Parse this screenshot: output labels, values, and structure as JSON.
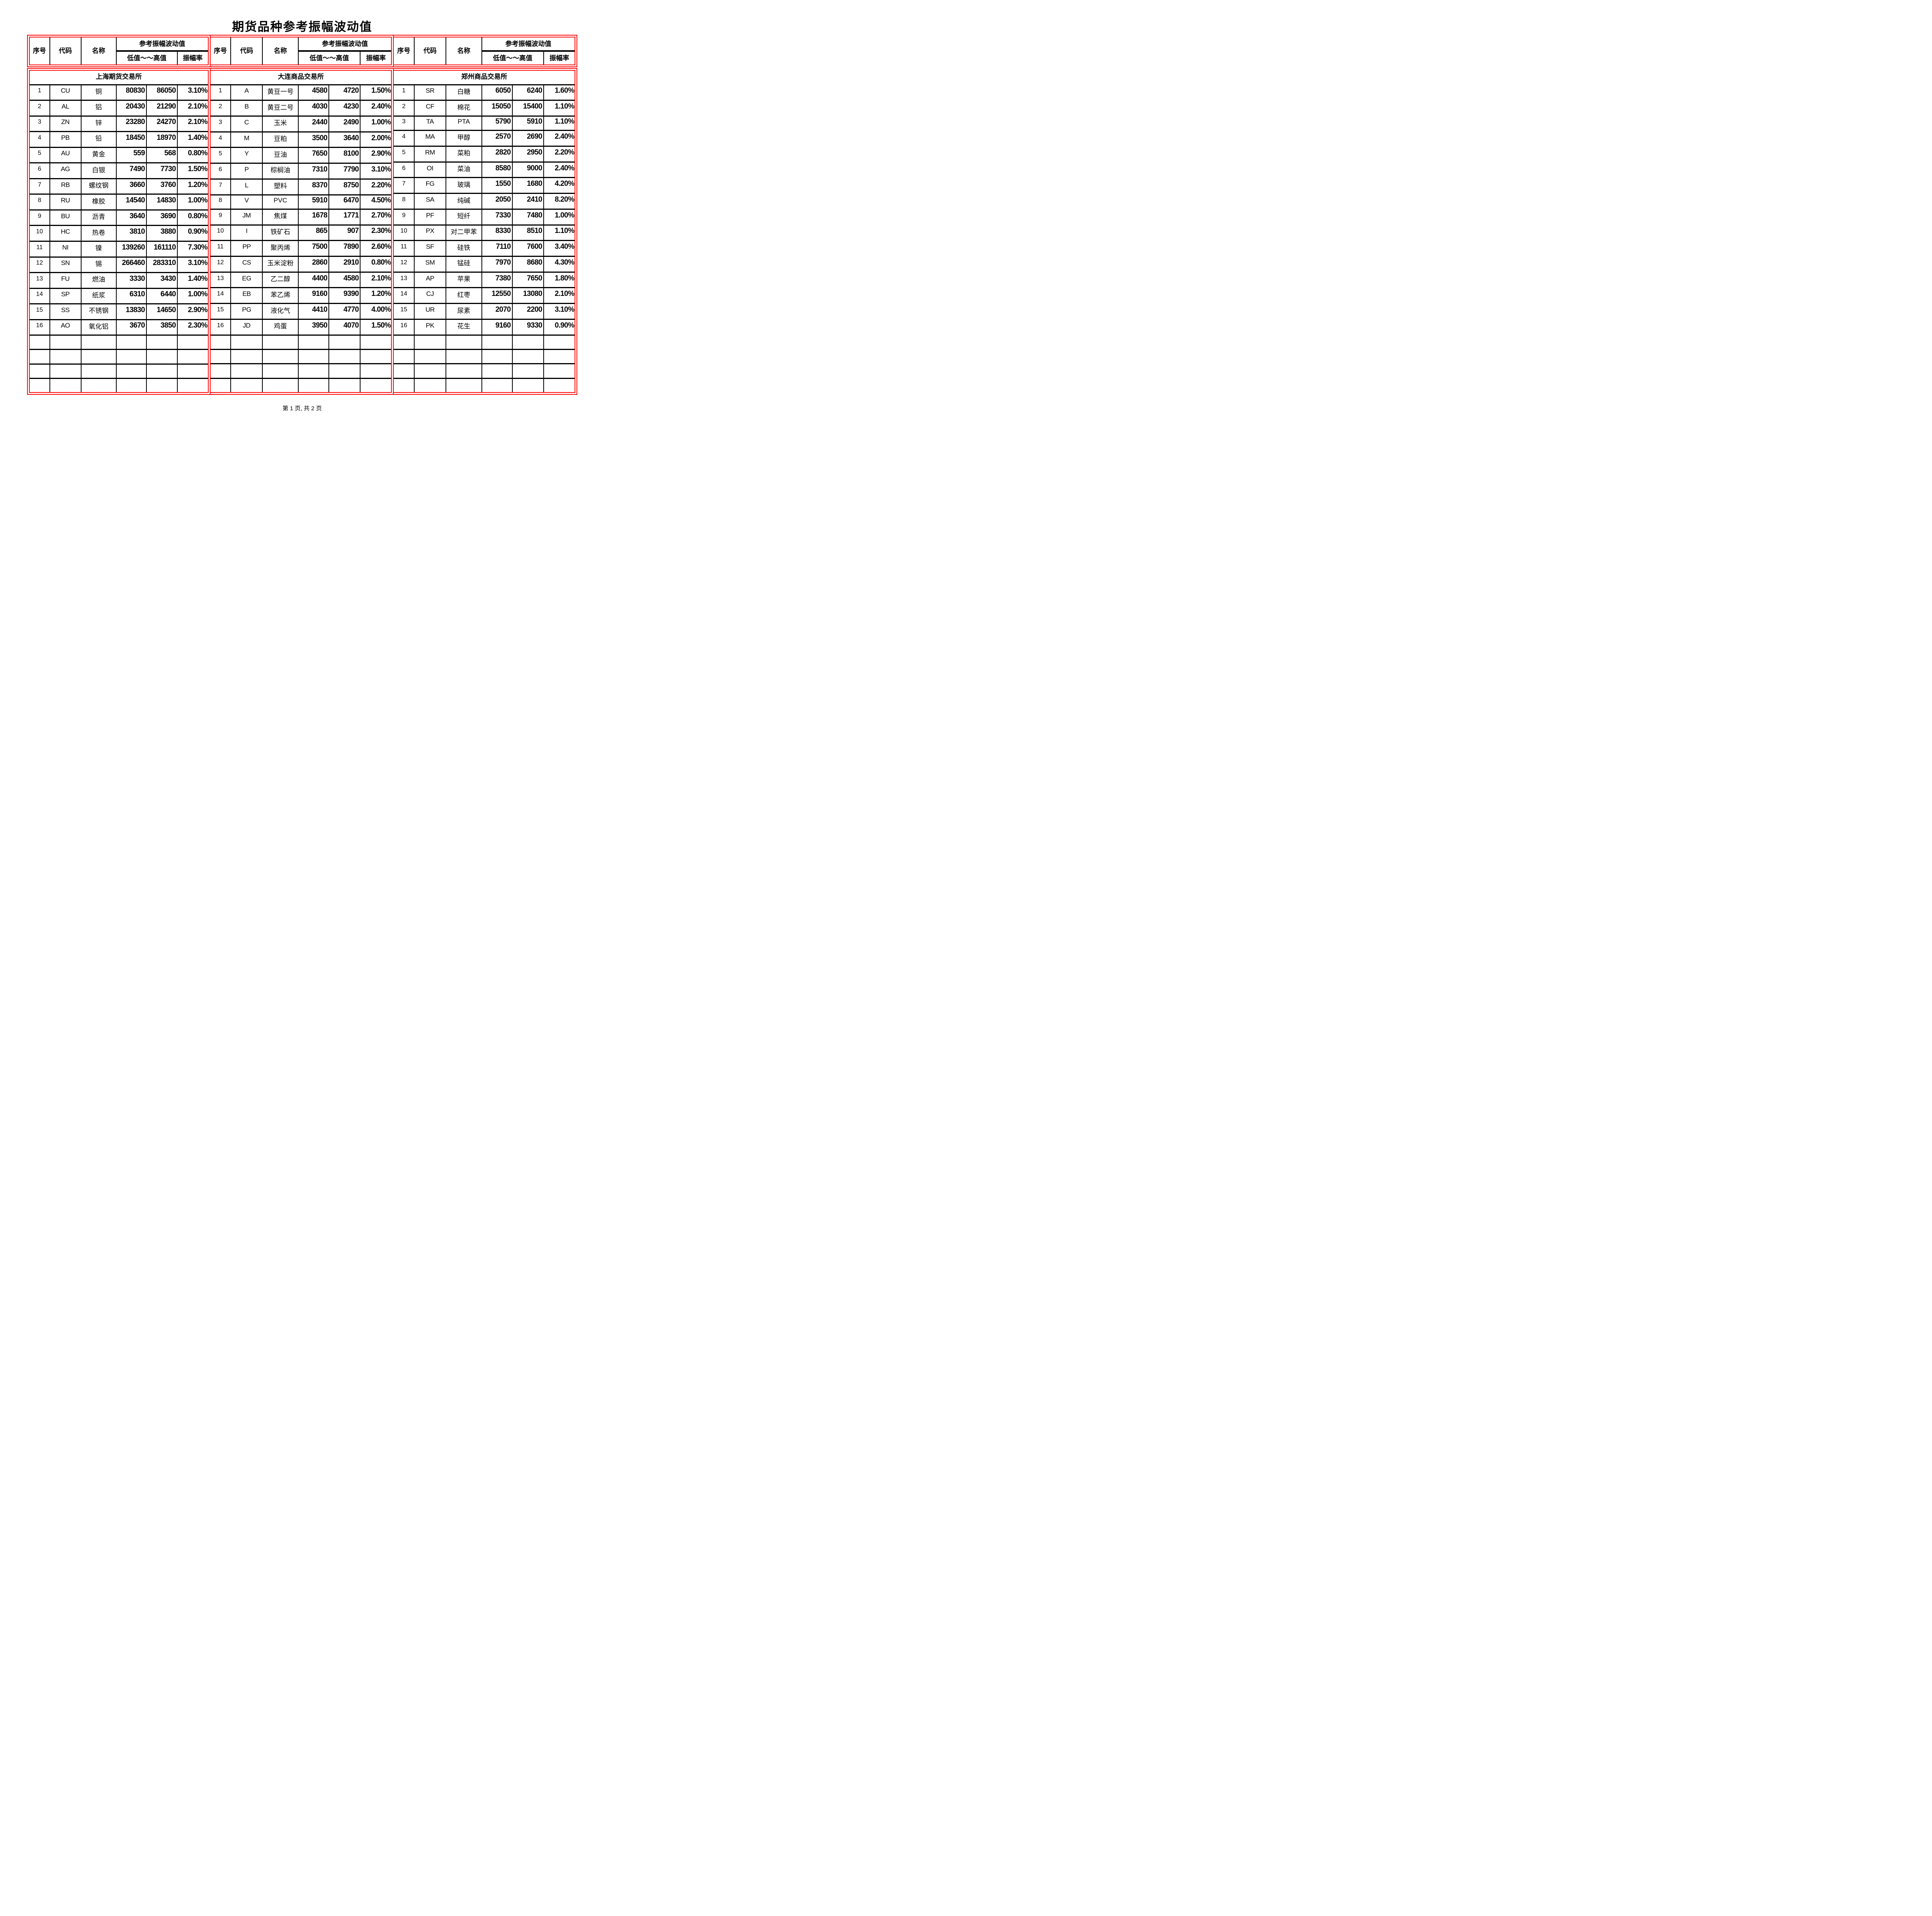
{
  "page": {
    "title": "期货品种参考振幅波动值",
    "footer": "第 1 页, 共 2 页"
  },
  "colors": {
    "border_accent": "#FF0000",
    "grid_line": "#000000"
  },
  "header_labels": {
    "seq": "序号",
    "code": "代码",
    "name": "名称",
    "ref": "参考振幅波动值",
    "range": "低值～～高值",
    "rate": "振幅率"
  },
  "empty_row_count": 4,
  "exchanges": [
    {
      "name": "上海期货交易所",
      "rows": [
        [
          "1",
          "CU",
          "铜",
          "80830",
          "86050",
          "3.10%"
        ],
        [
          "2",
          "AL",
          "铝",
          "20430",
          "21290",
          "2.10%"
        ],
        [
          "3",
          "ZN",
          "锌",
          "23280",
          "24270",
          "2.10%"
        ],
        [
          "4",
          "PB",
          "铅",
          "18450",
          "18970",
          "1.40%"
        ],
        [
          "5",
          "AU",
          "黄金",
          "559",
          "568",
          "0.80%"
        ],
        [
          "6",
          "AG",
          "白银",
          "7490",
          "7730",
          "1.50%"
        ],
        [
          "7",
          "RB",
          "螺纹钢",
          "3660",
          "3760",
          "1.20%"
        ],
        [
          "8",
          "RU",
          "橡胶",
          "14540",
          "14830",
          "1.00%"
        ],
        [
          "9",
          "BU",
          "沥青",
          "3640",
          "3690",
          "0.80%"
        ],
        [
          "10",
          "HC",
          "热卷",
          "3810",
          "3880",
          "0.90%"
        ],
        [
          "11",
          "NI",
          "镍",
          "139260",
          "161110",
          "7.30%"
        ],
        [
          "12",
          "SN",
          "锡",
          "266460",
          "283310",
          "3.10%"
        ],
        [
          "13",
          "FU",
          "燃油",
          "3330",
          "3430",
          "1.40%"
        ],
        [
          "14",
          "SP",
          "纸浆",
          "6310",
          "6440",
          "1.00%"
        ],
        [
          "15",
          "SS",
          "不锈钢",
          "13830",
          "14650",
          "2.90%"
        ],
        [
          "16",
          "AO",
          "氧化铝",
          "3670",
          "3850",
          "2.30%"
        ]
      ]
    },
    {
      "name": "大连商品交易所",
      "rows": [
        [
          "1",
          "A",
          "黄豆一号",
          "4580",
          "4720",
          "1.50%"
        ],
        [
          "2",
          "B",
          "黄豆二号",
          "4030",
          "4230",
          "2.40%"
        ],
        [
          "3",
          "C",
          "玉米",
          "2440",
          "2490",
          "1.00%"
        ],
        [
          "4",
          "M",
          "豆粕",
          "3500",
          "3640",
          "2.00%"
        ],
        [
          "5",
          "Y",
          "豆油",
          "7650",
          "8100",
          "2.90%"
        ],
        [
          "6",
          "P",
          "棕榈油",
          "7310",
          "7790",
          "3.10%"
        ],
        [
          "7",
          "L",
          "塑料",
          "8370",
          "8750",
          "2.20%"
        ],
        [
          "8",
          "V",
          "PVC",
          "5910",
          "6470",
          "4.50%"
        ],
        [
          "9",
          "JM",
          "焦煤",
          "1678",
          "1771",
          "2.70%"
        ],
        [
          "10",
          "I",
          "铁矿石",
          "865",
          "907",
          "2.30%"
        ],
        [
          "11",
          "PP",
          "聚丙烯",
          "7500",
          "7890",
          "2.60%"
        ],
        [
          "12",
          "CS",
          "玉米淀粉",
          "2860",
          "2910",
          "0.80%"
        ],
        [
          "13",
          "EG",
          "乙二醇",
          "4400",
          "4580",
          "2.10%"
        ],
        [
          "14",
          "EB",
          "苯乙烯",
          "9160",
          "9390",
          "1.20%"
        ],
        [
          "15",
          "PG",
          "液化气",
          "4410",
          "4770",
          "4.00%"
        ],
        [
          "16",
          "JD",
          "鸡蛋",
          "3950",
          "4070",
          "1.50%"
        ]
      ]
    },
    {
      "name": "郑州商品交易所",
      "rows": [
        [
          "1",
          "SR",
          "白糖",
          "6050",
          "6240",
          "1.60%"
        ],
        [
          "2",
          "CF",
          "棉花",
          "15050",
          "15400",
          "1.10%"
        ],
        [
          "3",
          "TA",
          "PTA",
          "5790",
          "5910",
          "1.10%"
        ],
        [
          "4",
          "MA",
          "甲醇",
          "2570",
          "2690",
          "2.40%"
        ],
        [
          "5",
          "RM",
          "菜粕",
          "2820",
          "2950",
          "2.20%"
        ],
        [
          "6",
          "OI",
          "菜油",
          "8580",
          "9000",
          "2.40%"
        ],
        [
          "7",
          "FG",
          "玻璃",
          "1550",
          "1680",
          "4.20%"
        ],
        [
          "8",
          "SA",
          "纯碱",
          "2050",
          "2410",
          "8.20%"
        ],
        [
          "9",
          "PF",
          "短纤",
          "7330",
          "7480",
          "1.00%"
        ],
        [
          "10",
          "PX",
          "对二甲苯",
          "8330",
          "8510",
          "1.10%"
        ],
        [
          "11",
          "SF",
          "硅铁",
          "7110",
          "7600",
          "3.40%"
        ],
        [
          "12",
          "SM",
          "锰硅",
          "7970",
          "8680",
          "4.30%"
        ],
        [
          "13",
          "AP",
          "苹果",
          "7380",
          "7650",
          "1.80%"
        ],
        [
          "14",
          "CJ",
          "红枣",
          "12550",
          "13080",
          "2.10%"
        ],
        [
          "15",
          "UR",
          "尿素",
          "2070",
          "2200",
          "3.10%"
        ],
        [
          "16",
          "PK",
          "花生",
          "9160",
          "9330",
          "0.90%"
        ]
      ]
    }
  ]
}
